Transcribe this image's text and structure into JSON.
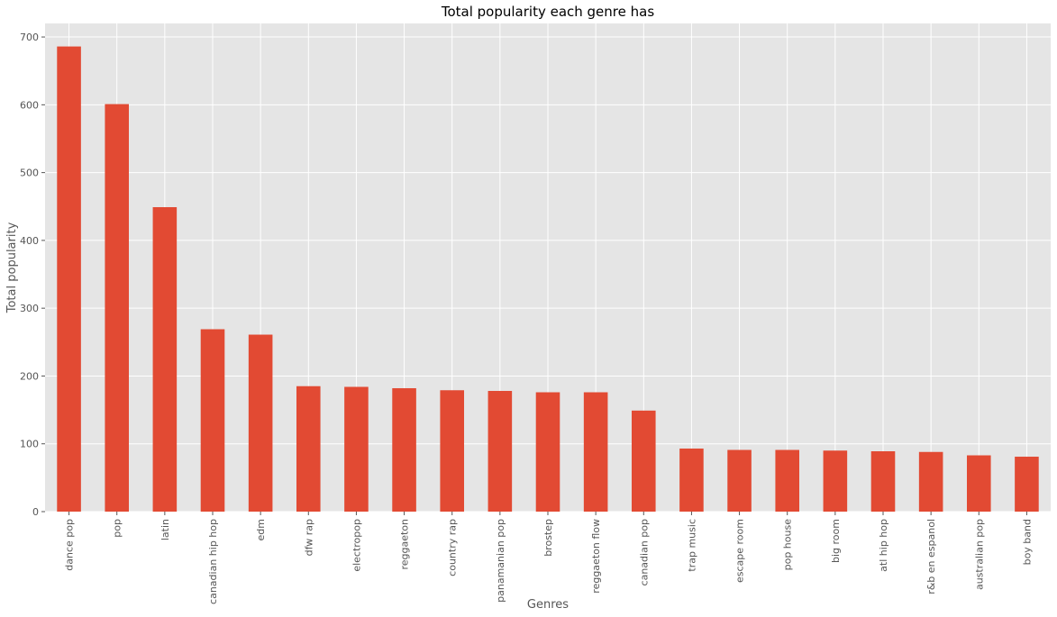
{
  "chart_data": {
    "type": "bar",
    "title": "Total popularity each genre has",
    "xlabel": "Genres",
    "ylabel": "Total popularity",
    "ylim": [
      0,
      720
    ],
    "yticks": [
      0,
      100,
      200,
      300,
      400,
      500,
      600,
      700
    ],
    "grid": true,
    "bar_color": "#E24A33",
    "plot_background": "#E5E5E5",
    "grid_color": "#FFFFFF",
    "categories": [
      "dance pop",
      "pop",
      "latin",
      "canadian hip hop",
      "edm",
      "dfw rap",
      "electropop",
      "reggaeton",
      "country rap",
      "panamanian pop",
      "brostep",
      "reggaeton flow",
      "canadian pop",
      "trap music",
      "escape room",
      "pop house",
      "big room",
      "atl hip hop",
      "r&b en espanol",
      "australian pop",
      "boy band"
    ],
    "values": [
      686,
      601,
      449,
      269,
      261,
      185,
      184,
      182,
      179,
      178,
      176,
      176,
      149,
      93,
      91,
      91,
      90,
      89,
      88,
      83,
      81
    ]
  }
}
